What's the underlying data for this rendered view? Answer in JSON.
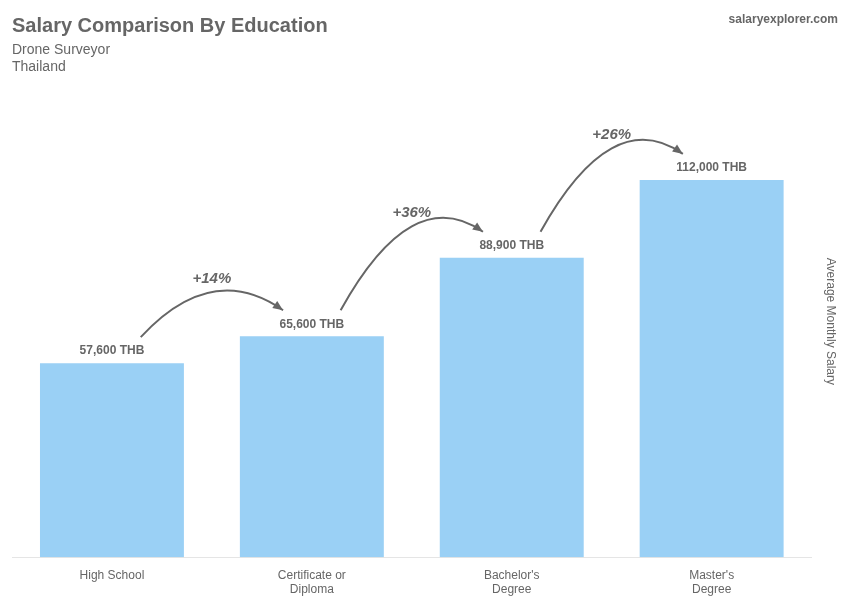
{
  "chart_data": {
    "type": "bar",
    "title": "Salary Comparison By Education",
    "subtitle": [
      "Drone Surveyor",
      "Thailand"
    ],
    "ylabel": "Average Monthly Salary",
    "categories": [
      "High School",
      "Certificate or\nDiploma",
      "Bachelor's\nDegree",
      "Master's\nDegree"
    ],
    "values": [
      57600,
      65600,
      88900,
      112000
    ],
    "value_labels": [
      "57,600 THB",
      "65,600 THB",
      "88,900 THB",
      "112,000 THB"
    ],
    "data_labels": true,
    "annotations": [
      "+14%",
      "+36%",
      "+26%",
      "salaryexplorer.com"
    ],
    "ylim": [
      0,
      140000
    ],
    "grid": false,
    "tick_labels": "x"
  }
}
